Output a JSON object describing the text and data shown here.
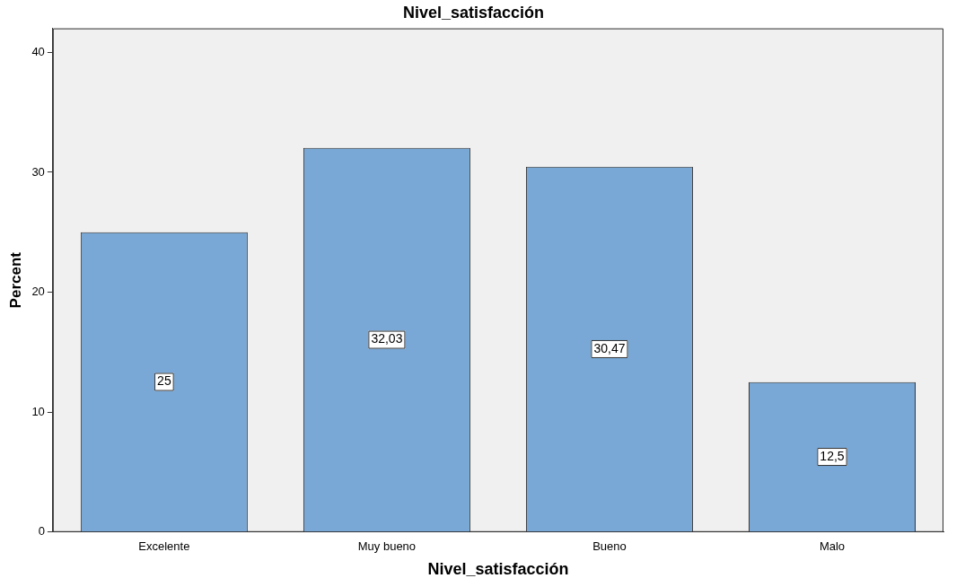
{
  "chart_data": {
    "type": "bar",
    "title": "Nivel_satisfacción",
    "xlabel": "Nivel_satisfacción",
    "ylabel": "Percent",
    "categories": [
      "Excelente",
      "Muy bueno",
      "Bueno",
      "Malo"
    ],
    "values": [
      25,
      32.03,
      30.47,
      12.5
    ],
    "value_labels": [
      "25",
      "32,03",
      "30,47",
      "12,5"
    ],
    "color": "#79a8d6",
    "ylim": [
      0,
      42
    ],
    "yticks": [
      0,
      10,
      20,
      30,
      40
    ],
    "grid": false,
    "legend": false
  }
}
